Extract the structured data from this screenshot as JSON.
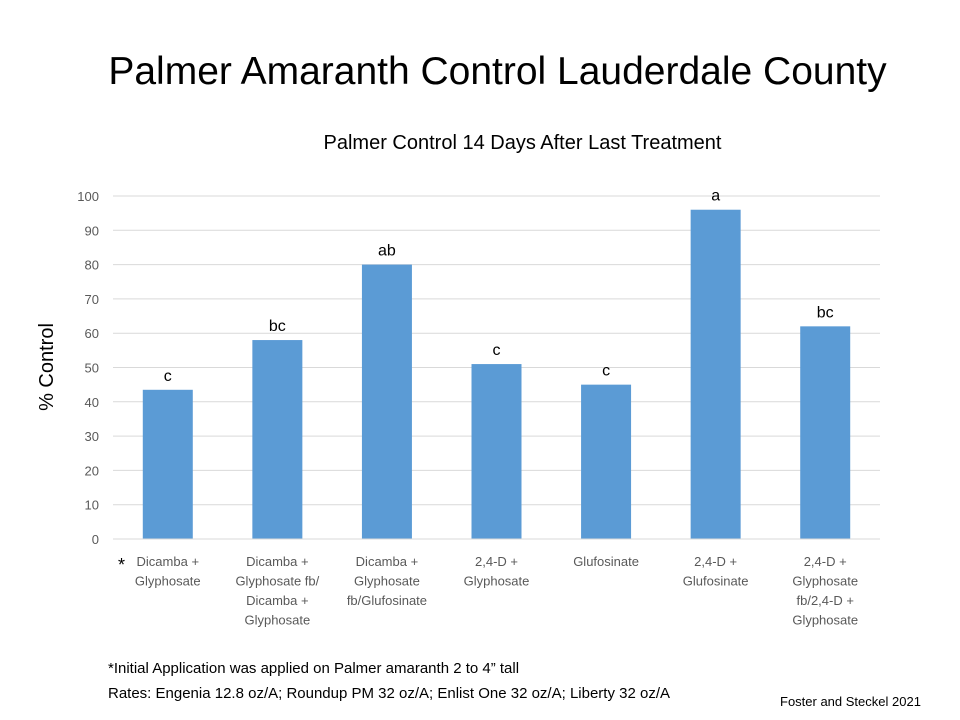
{
  "slide": {
    "title": "Palmer Amaranth Control Lauderdale County",
    "asterisk": "*",
    "footnote1": "*Initial Application was applied on Palmer amaranth 2 to 4” tall",
    "footnote2": "Rates:  Engenia 12.8 oz/A; Roundup PM 32 oz/A; Enlist One 32 oz/A; Liberty 32 oz/A",
    "credit": "Foster and Steckel 2021"
  },
  "colors": {
    "bar": "#5b9bd5",
    "grid": "#d9d9d9",
    "axis_text": "#595959"
  },
  "chart_data": {
    "type": "bar",
    "title": "Palmer Control 14 Days After Last Treatment",
    "xlabel": "",
    "ylabel": "% Control",
    "ylim": [
      0,
      100
    ],
    "yticks": [
      0,
      10,
      20,
      30,
      40,
      50,
      60,
      70,
      80,
      90,
      100
    ],
    "grid": true,
    "categories": [
      [
        "Dicamba +",
        "Glyphosate"
      ],
      [
        "Dicamba +",
        "Glyphosate fb/",
        "Dicamba +",
        "Glyphosate"
      ],
      [
        "Dicamba +",
        "Glyphosate",
        "fb/Glufosinate"
      ],
      [
        "2,4-D +",
        "Glyphosate"
      ],
      [
        "Glufosinate"
      ],
      [
        "2,4-D +",
        "Glufosinate"
      ],
      [
        "2,4-D +",
        "Glyphosate",
        "fb/2,4-D +",
        "Glyphosate"
      ]
    ],
    "values": [
      43.5,
      58,
      80,
      51,
      45,
      96,
      62
    ],
    "data_labels": [
      "c",
      "bc",
      "ab",
      "c",
      "c",
      "a",
      "bc"
    ]
  }
}
